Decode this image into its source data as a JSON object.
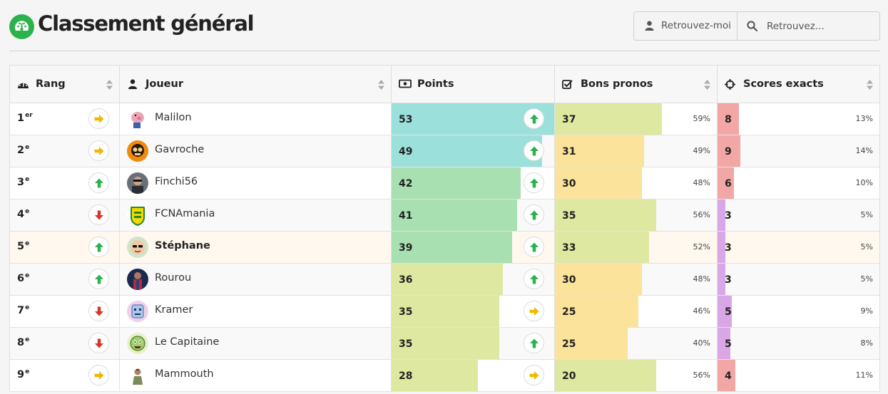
{
  "header": {
    "title": "Classement général",
    "findme_label": "Retrouvez-moi",
    "search_placeholder": "Retrouvez..."
  },
  "columns": [
    "Rang",
    "Joueur",
    "Points",
    "Bons pronos",
    "Scores exacts"
  ],
  "colors": {
    "brand": "#2bb24c",
    "trend_up": "#2bb24c",
    "trend_down": "#d9342b",
    "trend_same": "#f1b800",
    "points_high": "#9ce0dc",
    "points_mid": "#a8e0b2",
    "points_low": "#dfe8a0",
    "pronos_high": "#dfe8a0",
    "pronos_low": "#fbe39c",
    "exacts_high": "#f2a6a6",
    "exacts_low": "#d9a7e6"
  },
  "rows": [
    {
      "rank": "1",
      "suffix": "er",
      "trend": "same",
      "avatar": "pig-avatar",
      "name": "Malilon",
      "points": "53",
      "points_frac": 1.0,
      "points_trend": "up",
      "pronos": "37",
      "pronos_pct": "59%",
      "pronos_frac": 0.59,
      "exacts": "8",
      "exacts_pct": "13%",
      "exacts_frac": 0.13
    },
    {
      "rank": "2",
      "suffix": "e",
      "trend": "same",
      "avatar": "orange-avatar",
      "name": "Gavroche",
      "points": "49",
      "points_frac": 0.92,
      "points_trend": "up",
      "pronos": "31",
      "pronos_pct": "49%",
      "pronos_frac": 0.49,
      "exacts": "9",
      "exacts_pct": "14%",
      "exacts_frac": 0.14
    },
    {
      "rank": "3",
      "suffix": "e",
      "trend": "up",
      "avatar": "photo-avatar",
      "name": "Finchi56",
      "points": "42",
      "points_frac": 0.79,
      "points_trend": "up",
      "pronos": "30",
      "pronos_pct": "48%",
      "pronos_frac": 0.48,
      "exacts": "6",
      "exacts_pct": "10%",
      "exacts_frac": 0.1
    },
    {
      "rank": "4",
      "suffix": "e",
      "trend": "down",
      "avatar": "fcna-avatar",
      "name": "FCNAmania",
      "points": "41",
      "points_frac": 0.77,
      "points_trend": "up",
      "pronos": "35",
      "pronos_pct": "56%",
      "pronos_frac": 0.56,
      "exacts": "3",
      "exacts_pct": "5%",
      "exacts_frac": 0.05
    },
    {
      "rank": "5",
      "suffix": "e",
      "trend": "up",
      "avatar": "face-avatar",
      "name": "Stéphane",
      "points": "39",
      "points_frac": 0.74,
      "points_trend": "up",
      "pronos": "33",
      "pronos_pct": "52%",
      "pronos_frac": 0.52,
      "exacts": "3",
      "exacts_pct": "5%",
      "exacts_frac": 0.05,
      "me": true
    },
    {
      "rank": "6",
      "suffix": "e",
      "trend": "up",
      "avatar": "hero-avatar",
      "name": "Rourou",
      "points": "36",
      "points_frac": 0.68,
      "points_trend": "up",
      "pronos": "30",
      "pronos_pct": "48%",
      "pronos_frac": 0.48,
      "exacts": "3",
      "exacts_pct": "5%",
      "exacts_frac": 0.05
    },
    {
      "rank": "7",
      "suffix": "e",
      "trend": "down",
      "avatar": "robot-avatar",
      "name": "Kramer",
      "points": "35",
      "points_frac": 0.66,
      "points_trend": "same",
      "pronos": "25",
      "pronos_pct": "46%",
      "pronos_frac": 0.46,
      "exacts": "5",
      "exacts_pct": "9%",
      "exacts_frac": 0.09
    },
    {
      "rank": "8",
      "suffix": "e",
      "trend": "down",
      "avatar": "monster-avatar",
      "name": "Le Capitaine",
      "points": "35",
      "points_frac": 0.66,
      "points_trend": "up",
      "pronos": "25",
      "pronos_pct": "40%",
      "pronos_frac": 0.4,
      "exacts": "5",
      "exacts_pct": "8%",
      "exacts_frac": 0.08
    },
    {
      "rank": "9",
      "suffix": "e",
      "trend": "same",
      "avatar": "warrior-avatar",
      "name": "Mammouth",
      "points": "28",
      "points_frac": 0.53,
      "points_trend": "same",
      "pronos": "20",
      "pronos_pct": "56%",
      "pronos_frac": 0.56,
      "exacts": "4",
      "exacts_pct": "11%",
      "exacts_frac": 0.11
    }
  ]
}
